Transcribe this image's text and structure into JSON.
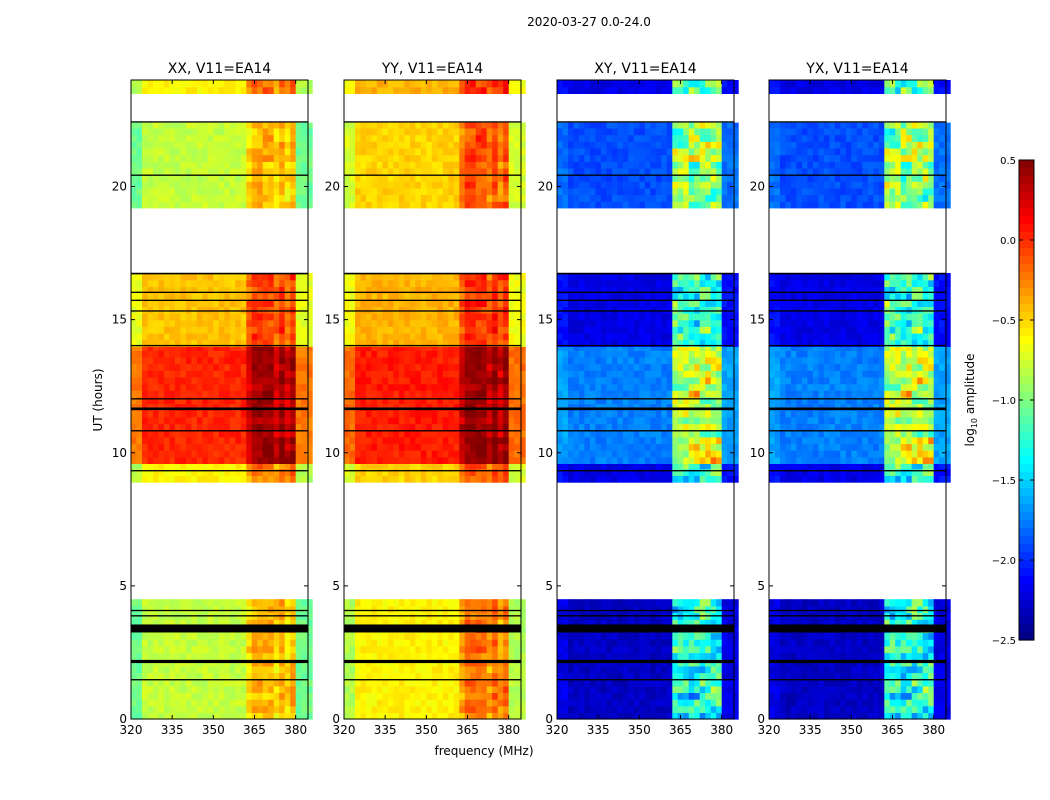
{
  "chart_data": {
    "type": "heatmap",
    "suptitle": "2020-03-27 0.0-24.0",
    "xlabel": "frequency (MHz)",
    "ylabel": "UT (hours)",
    "xlim": [
      320,
      384.5
    ],
    "ylim": [
      0,
      24
    ],
    "xticks": [
      "320",
      "335",
      "350",
      "365",
      "380"
    ],
    "yticks": [
      "0",
      "5",
      "10",
      "15",
      "20"
    ],
    "colorbar": {
      "label": "log10 amplitude",
      "range": [
        -2.5,
        0.5
      ],
      "ticks": [
        "0.5",
        "0.0",
        "−0.5",
        "−1.0",
        "−1.5",
        "−2.0",
        "−2.5"
      ],
      "colormap": "jet"
    },
    "data_segments_hours": [
      [
        0,
        4.5
      ],
      [
        8.9,
        16.75
      ],
      [
        19.2,
        22.4
      ],
      [
        23.5,
        24
      ]
    ],
    "flagged_black_hours": [
      [
        3.25,
        3.55
      ],
      [
        2.1,
        2.22
      ],
      [
        4.05,
        4.1
      ],
      [
        3.85,
        3.9
      ],
      [
        1.45,
        1.5
      ],
      [
        16.7,
        16.76
      ],
      [
        16.0,
        16.05
      ],
      [
        15.7,
        15.75
      ],
      [
        15.3,
        15.35
      ],
      [
        14.0,
        14.05
      ],
      [
        12.0,
        12.05
      ],
      [
        11.6,
        11.7
      ],
      [
        10.8,
        10.85
      ],
      [
        9.3,
        9.35
      ],
      [
        20.4,
        20.45
      ],
      [
        22.4,
        22.45
      ]
    ],
    "rfi_band_mhz": [
      362,
      380
    ],
    "panels": [
      {
        "title": "XX, V11=EA14",
        "levels": [
          [
            0,
            4.5,
            -0.8
          ],
          [
            8.9,
            9.6,
            -0.6
          ],
          [
            9.6,
            14.0,
            0.02
          ],
          [
            14.0,
            16.75,
            -0.45
          ],
          [
            19.2,
            22.4,
            -0.8
          ],
          [
            23.5,
            24,
            -0.6
          ]
        ],
        "rfi_boost": 0.45
      },
      {
        "title": "YY, V11=EA14",
        "levels": [
          [
            0,
            4.5,
            -0.6
          ],
          [
            8.9,
            9.6,
            -0.5
          ],
          [
            9.6,
            14.0,
            0.05
          ],
          [
            14.0,
            16.75,
            -0.4
          ],
          [
            19.2,
            22.4,
            -0.5
          ],
          [
            23.5,
            24,
            -0.4
          ]
        ],
        "rfi_boost": 0.45
      },
      {
        "title": "XY, V11=EA14",
        "levels": [
          [
            0,
            4.5,
            -2.3
          ],
          [
            8.9,
            9.6,
            -2.2
          ],
          [
            9.6,
            14.0,
            -1.75
          ],
          [
            14.0,
            16.75,
            -2.2
          ],
          [
            19.2,
            22.4,
            -1.9
          ],
          [
            23.5,
            24,
            -2.2
          ]
        ],
        "rfi_boost": 1.1
      },
      {
        "title": "YX, V11=EA14",
        "levels": [
          [
            0,
            4.5,
            -2.3
          ],
          [
            8.9,
            9.6,
            -2.2
          ],
          [
            9.6,
            14.0,
            -1.75
          ],
          [
            14.0,
            16.75,
            -2.2
          ],
          [
            19.2,
            22.4,
            -1.9
          ],
          [
            23.5,
            24,
            -2.2
          ]
        ],
        "rfi_boost": 1.1
      }
    ]
  }
}
